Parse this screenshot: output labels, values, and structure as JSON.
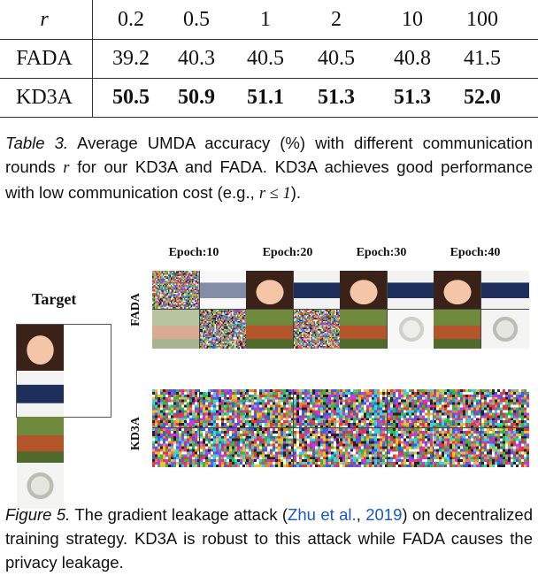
{
  "table": {
    "header": {
      "label": "r",
      "values": [
        "0.2",
        "0.5",
        "1",
        "2",
        "10",
        "100"
      ]
    },
    "rows": [
      {
        "label": "FADA",
        "values": [
          "39.2",
          "40.3",
          "40.5",
          "40.5",
          "40.8",
          "41.5"
        ]
      },
      {
        "label": "KD3A",
        "values": [
          "50.5",
          "50.9",
          "51.1",
          "51.3",
          "51.3",
          "52.0"
        ]
      }
    ]
  },
  "table_caption": {
    "label": "Table 3.",
    "text_a": "Average UMDA accuracy (%) with different communication rounds",
    "var_r": "r",
    "text_b": "for our KD3A and FADA. KD3A achieves good performance with low communication cost (e.g.,",
    "cond": "r ≤ 1",
    "text_c": ")."
  },
  "figure": {
    "target_label": "Target",
    "epochs": [
      "Epoch:10",
      "Epoch:20",
      "Epoch:30",
      "Epoch:40"
    ],
    "row_labels": [
      "FADA",
      "KD3A"
    ],
    "icons": {
      "target_image": "target-image",
      "reconstruction": "reconstruction-image"
    }
  },
  "figure_caption": {
    "label": "Figure 5.",
    "text_a": "The gradient leakage attack (",
    "citation_author": "Zhu et al.",
    "citation_sep": ", ",
    "citation_year": "2019",
    "text_b": ") on decentralized training strategy. KD3A is robust to this attack while FADA causes the privacy leakage.",
    "link_color": "#1a56c9"
  }
}
